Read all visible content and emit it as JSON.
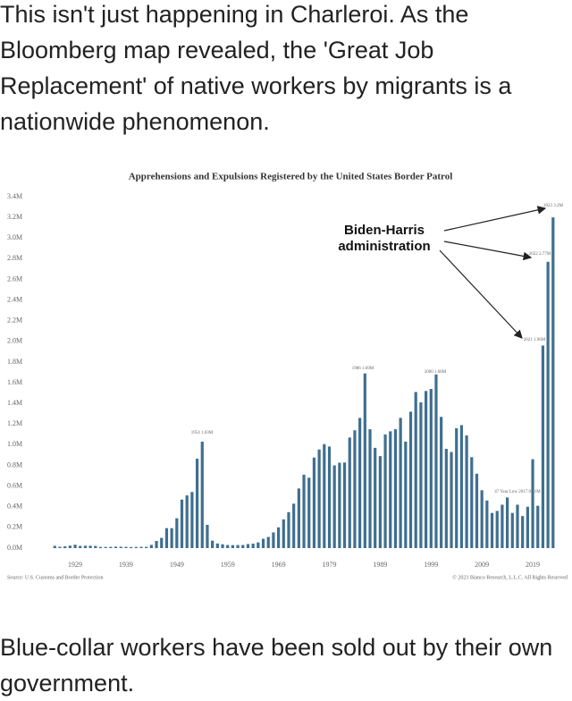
{
  "post": {
    "text": "This isn't just happening in Charleroi. As the Bloomberg map revealed, the 'Great Job Replacement' of native workers by migrants is a nationwide phenomenon.",
    "caption": "Blue-collar workers have been sold out by their own government."
  },
  "chart_data": {
    "type": "bar",
    "title": "Apprehensions and Expulsions Registered by the United States Border Patrol",
    "x": [
      1925,
      1926,
      1927,
      1928,
      1929,
      1930,
      1931,
      1932,
      1933,
      1934,
      1935,
      1936,
      1937,
      1938,
      1939,
      1940,
      1941,
      1942,
      1943,
      1944,
      1945,
      1946,
      1947,
      1948,
      1949,
      1950,
      1951,
      1952,
      1953,
      1954,
      1955,
      1956,
      1957,
      1958,
      1959,
      1960,
      1961,
      1962,
      1963,
      1964,
      1965,
      1966,
      1967,
      1968,
      1969,
      1970,
      1971,
      1972,
      1973,
      1974,
      1975,
      1976,
      1977,
      1978,
      1979,
      1980,
      1981,
      1982,
      1983,
      1984,
      1985,
      1986,
      1987,
      1988,
      1989,
      1990,
      1991,
      1992,
      1993,
      1994,
      1995,
      1996,
      1997,
      1998,
      1999,
      2000,
      2001,
      2002,
      2003,
      2004,
      2005,
      2006,
      2007,
      2008,
      2009,
      2010,
      2011,
      2012,
      2013,
      2014,
      2015,
      2016,
      2017,
      2018,
      2019,
      2020,
      2021,
      2022,
      2023
    ],
    "values": [
      0.022,
      0.013,
      0.017,
      0.024,
      0.033,
      0.021,
      0.023,
      0.023,
      0.021,
      0.011,
      0.011,
      0.012,
      0.014,
      0.013,
      0.012,
      0.01,
      0.011,
      0.012,
      0.012,
      0.031,
      0.069,
      0.099,
      0.193,
      0.193,
      0.289,
      0.469,
      0.51,
      0.543,
      0.865,
      1.03,
      0.225,
      0.072,
      0.045,
      0.037,
      0.03,
      0.029,
      0.03,
      0.03,
      0.039,
      0.043,
      0.055,
      0.09,
      0.108,
      0.152,
      0.201,
      0.278,
      0.348,
      0.43,
      0.577,
      0.71,
      0.681,
      0.876,
      0.954,
      1.006,
      0.983,
      0.8,
      0.826,
      0.828,
      1.07,
      1.14,
      1.26,
      1.69,
      1.15,
      0.97,
      0.89,
      1.1,
      1.13,
      1.15,
      1.26,
      1.03,
      1.32,
      1.51,
      1.41,
      1.52,
      1.54,
      1.68,
      1.27,
      0.96,
      0.93,
      1.16,
      1.19,
      1.09,
      0.88,
      0.72,
      0.56,
      0.46,
      0.34,
      0.36,
      0.42,
      0.49,
      0.34,
      0.42,
      0.31,
      0.4,
      0.86,
      0.41,
      1.96,
      2.77,
      3.2
    ],
    "color": "#3f6f8f",
    "xlim": [
      1924,
      2024
    ],
    "xticks": [
      1929,
      1939,
      1949,
      1959,
      1969,
      1979,
      1989,
      1999,
      2009,
      2019
    ],
    "ylim": [
      0,
      3.4
    ],
    "yticks": [
      {
        "value": 0,
        "label": "0.0M"
      },
      {
        "value": 0.2,
        "label": "0.2M"
      },
      {
        "value": 0.4,
        "label": "0.4M"
      },
      {
        "value": 0.6,
        "label": "0.6M"
      },
      {
        "value": 0.8,
        "label": "0.8M"
      },
      {
        "value": 1.0,
        "label": "1.0M"
      },
      {
        "value": 1.2,
        "label": "1.2M"
      },
      {
        "value": 1.4,
        "label": "1.4M"
      },
      {
        "value": 1.6,
        "label": "1.6M"
      },
      {
        "value": 1.8,
        "label": "1.8M"
      },
      {
        "value": 2.0,
        "label": "2.0M"
      },
      {
        "value": 2.2,
        "label": "2.2M"
      },
      {
        "value": 2.4,
        "label": "2.4M"
      },
      {
        "value": 2.6,
        "label": "2.6M"
      },
      {
        "value": 2.8,
        "label": "2.8M"
      },
      {
        "value": 3.0,
        "label": "3.0M"
      },
      {
        "value": 3.2,
        "label": "3.2M"
      },
      {
        "value": 3.4,
        "label": "3.4M"
      }
    ],
    "annotations": [
      "Biden-Harris",
      "administration",
      "1954 1.03M",
      "1986 1.69M",
      "2000 1.68M",
      "2021 1.96M",
      "2022 2.77M",
      "2023 3.2M",
      "47 Year Low 2017 0.31M",
      "Source: U.S. Customs and Border Protection",
      "© 2023 Bianco Research, L.L.C. All Rights Reserved"
    ]
  }
}
